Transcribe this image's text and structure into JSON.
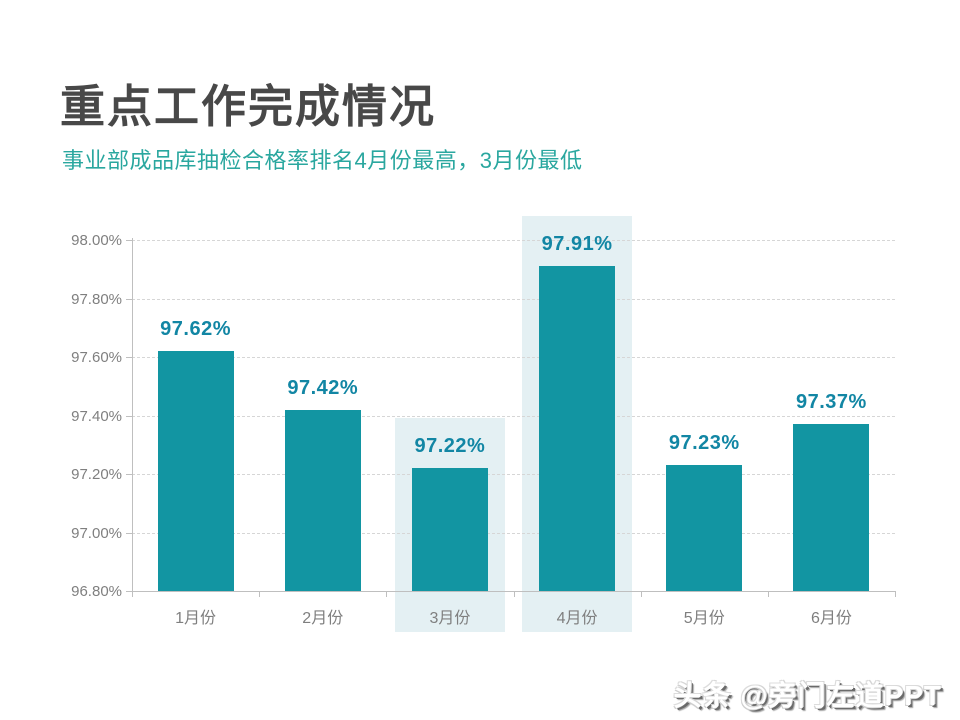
{
  "slide": {
    "title": "重点工作完成情况",
    "subtitle": "事业部成品库抽检合格率排名4月份最高，3月份最低",
    "watermark": "头条 @旁门左道PPT"
  },
  "colors": {
    "bar_teal": "#1295A2",
    "value_label_teal": "#1286A4",
    "subtitle_teal": "#2AA79F",
    "highlight_band": "#E4F0F3",
    "title_gray": "#484848",
    "axis_text_gray": "#7F7F7F",
    "axis_line_gray": "#BFBFBF",
    "gridline_gray": "#D6D6D6"
  },
  "chart_data": {
    "type": "bar",
    "title": "",
    "xlabel": "",
    "ylabel": "",
    "categories": [
      "1月份",
      "2月份",
      "3月份",
      "4月份",
      "5月份",
      "6月份"
    ],
    "values": [
      97.62,
      97.42,
      97.22,
      97.91,
      97.23,
      97.37
    ],
    "value_labels": [
      "97.62%",
      "97.42%",
      "97.22%",
      "97.91%",
      "97.23%",
      "97.37%"
    ],
    "ylim": [
      96.8,
      98.0
    ],
    "ytick_labels": [
      "98.00%",
      "97.80%",
      "97.60%",
      "97.40%",
      "97.20%",
      "97.00%",
      "96.80%"
    ],
    "grid": "horizontal-dashed",
    "legend": "none",
    "highlighted_category_indices": [
      2,
      3
    ],
    "highlight_note": "max month 4月份 and min month 3月份 have light teal background bands"
  }
}
